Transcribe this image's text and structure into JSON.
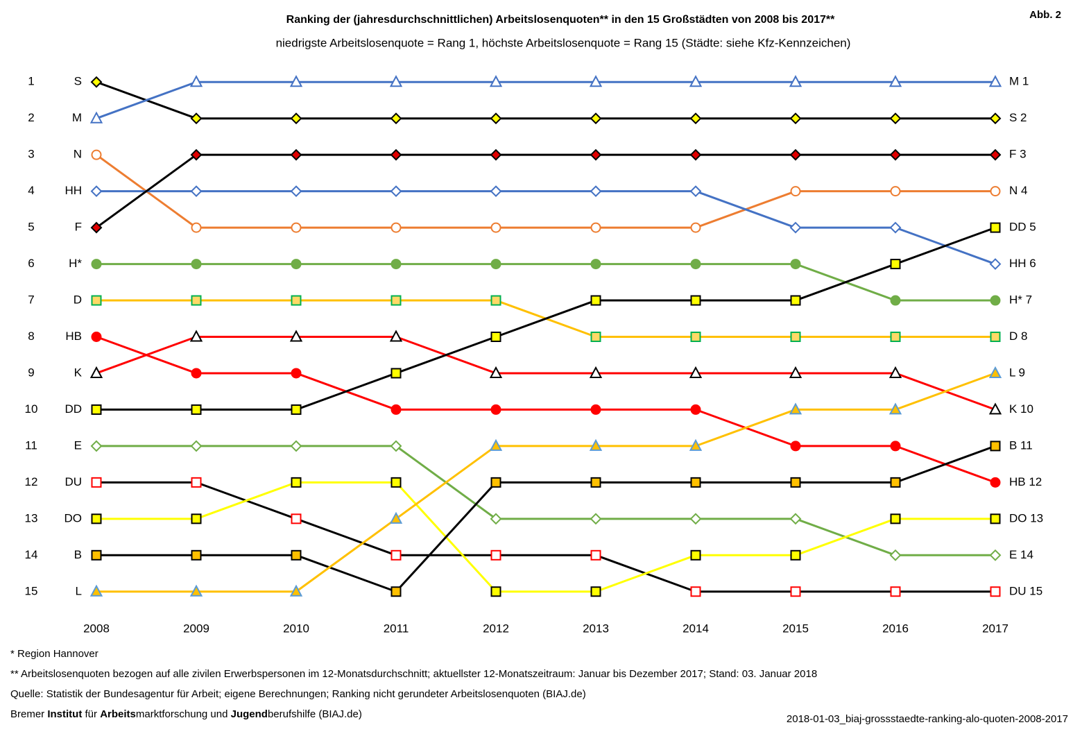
{
  "chart_data": {
    "type": "line",
    "title": "Ranking der (jahresdurchschnittlichen) Arbeitslosenquoten** in den 15 Großstädten von 2008 bis 2017**",
    "subtitle": "niedrigste Arbeitslosenquote = Rang 1, höchste Arbeitslosenquote = Rang 15 (Städte: siehe Kfz-Kennzeichen)",
    "figure_label": "Abb. 2",
    "categories": [
      "2008",
      "2009",
      "2010",
      "2011",
      "2012",
      "2013",
      "2014",
      "2015",
      "2016",
      "2017"
    ],
    "ylim": [
      15.5,
      0.5
    ],
    "yticks": [
      1,
      2,
      3,
      4,
      5,
      6,
      7,
      8,
      9,
      10,
      11,
      12,
      13,
      14,
      15
    ],
    "series": [
      {
        "name": "S",
        "end_label": "S 2",
        "color": "#000000",
        "marker": "diamond",
        "marker_fill": "#ffff00",
        "marker_stroke": "#000000",
        "values": [
          1,
          2,
          2,
          2,
          2,
          2,
          2,
          2,
          2,
          2
        ]
      },
      {
        "name": "M",
        "end_label": "M 1",
        "color": "#4472c4",
        "marker": "triangle",
        "marker_fill": "#ffffff",
        "marker_stroke": "#4472c4",
        "values": [
          2,
          1,
          1,
          1,
          1,
          1,
          1,
          1,
          1,
          1
        ]
      },
      {
        "name": "N",
        "end_label": "N 4",
        "color": "#ed7d31",
        "marker": "circle",
        "marker_fill": "#ffffff",
        "marker_stroke": "#ed7d31",
        "values": [
          3,
          5,
          5,
          5,
          5,
          5,
          5,
          4,
          4,
          4
        ]
      },
      {
        "name": "HH",
        "end_label": "HH 6",
        "color": "#4472c4",
        "marker": "diamond",
        "marker_fill": "#ffffff",
        "marker_stroke": "#4472c4",
        "values": [
          4,
          4,
          4,
          4,
          4,
          4,
          4,
          5,
          5,
          6
        ]
      },
      {
        "name": "F",
        "end_label": "F 3",
        "color": "#000000",
        "marker": "diamond",
        "marker_fill": "#e00000",
        "marker_stroke": "#000000",
        "values": [
          5,
          3,
          3,
          3,
          3,
          3,
          3,
          3,
          3,
          3
        ]
      },
      {
        "name": "H*",
        "end_label": "H* 7",
        "color": "#70ad47",
        "marker": "circle",
        "marker_fill": "#70ad47",
        "marker_stroke": "#70ad47",
        "values": [
          6,
          6,
          6,
          6,
          6,
          6,
          6,
          6,
          7,
          7
        ]
      },
      {
        "name": "D",
        "end_label": "D 8",
        "color": "#ffc000",
        "marker": "square",
        "marker_fill": "#ffd966",
        "marker_stroke": "#00b050",
        "values": [
          7,
          7,
          7,
          7,
          7,
          8,
          8,
          8,
          8,
          8
        ]
      },
      {
        "name": "HB",
        "end_label": "HB 12",
        "color": "#ff0000",
        "marker": "circle",
        "marker_fill": "#ff0000",
        "marker_stroke": "#ff0000",
        "values": [
          8,
          9,
          9,
          10,
          10,
          10,
          10,
          11,
          11,
          12
        ]
      },
      {
        "name": "K",
        "end_label": "K 10",
        "color": "#ff0000",
        "marker": "triangle",
        "marker_fill": "#ffffff",
        "marker_stroke": "#000000",
        "values": [
          9,
          8,
          8,
          8,
          9,
          9,
          9,
          9,
          9,
          10
        ]
      },
      {
        "name": "DD",
        "end_label": "DD 5",
        "color": "#000000",
        "marker": "square",
        "marker_fill": "#ffff00",
        "marker_stroke": "#000000",
        "values": [
          10,
          10,
          10,
          9,
          8,
          7,
          7,
          7,
          6,
          5
        ]
      },
      {
        "name": "E",
        "end_label": "E 14",
        "color": "#70ad47",
        "marker": "diamond",
        "marker_fill": "#ffffff",
        "marker_stroke": "#70ad47",
        "values": [
          11,
          11,
          11,
          11,
          13,
          13,
          13,
          13,
          14,
          14
        ]
      },
      {
        "name": "DU",
        "end_label": "DU 15",
        "color": "#000000",
        "marker": "square",
        "marker_fill": "#ffffff",
        "marker_stroke": "#ff0000",
        "values": [
          12,
          12,
          13,
          14,
          14,
          14,
          15,
          15,
          15,
          15
        ]
      },
      {
        "name": "DO",
        "end_label": "DO 13",
        "color": "#ffff00",
        "marker": "square",
        "marker_fill": "#ffff00",
        "marker_stroke": "#000000",
        "values": [
          13,
          13,
          12,
          12,
          15,
          15,
          14,
          14,
          13,
          13
        ]
      },
      {
        "name": "B",
        "end_label": "B 11",
        "color": "#000000",
        "marker": "square",
        "marker_fill": "#ffc000",
        "marker_stroke": "#000000",
        "values": [
          14,
          14,
          14,
          15,
          12,
          12,
          12,
          12,
          12,
          11
        ]
      },
      {
        "name": "L",
        "end_label": "L 9",
        "color": "#ffc000",
        "marker": "triangle",
        "marker_fill": "#ffc000",
        "marker_stroke": "#5b9bd5",
        "values": [
          15,
          15,
          15,
          13,
          11,
          11,
          11,
          10,
          10,
          9
        ]
      }
    ]
  },
  "footer": {
    "notes": [
      "* Region Hannover",
      "** Arbeitslosenquoten bezogen auf alle zivilen Erwerbspersonen im 12-Monatsdurchschnitt; aktuellster 12-Monatszeitraum: Januar bis Dezember 2017; Stand: 03. Januar 2018",
      "Quelle: Statistik der Bundesagentur für Arbeit; eigene Berechnungen; Ranking nicht gerundeter Arbeitslosenquoten (BIAJ.de)"
    ],
    "credit": [
      {
        "text": "Bremer ",
        "bold": false
      },
      {
        "text": "Institut",
        "bold": true
      },
      {
        "text": " für ",
        "bold": false
      },
      {
        "text": "Arbeits",
        "bold": true
      },
      {
        "text": "marktforschung und ",
        "bold": false
      },
      {
        "text": "Jugend",
        "bold": true
      },
      {
        "text": "berufshilfe (BIAJ.de)",
        "bold": false
      }
    ],
    "filename": "2018-01-03_biaj-grossstaedte-ranking-alo-quoten-2008-2017"
  }
}
